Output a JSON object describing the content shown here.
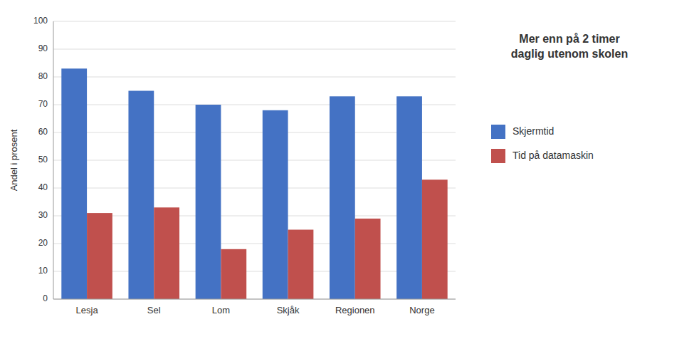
{
  "chart_data": {
    "type": "bar",
    "title": "Mer enn på 2 timer\ndaglig utenom skolen",
    "categories": [
      "Lesja",
      "Sel",
      "Lom",
      "Skjåk",
      "Regionen",
      "Norge"
    ],
    "series": [
      {
        "name": "Skjermtid",
        "color": "#4472C4",
        "values": [
          83,
          75,
          70,
          68,
          73,
          73
        ]
      },
      {
        "name": "Tid på datamaskin",
        "color": "#C0504D",
        "values": [
          31,
          33,
          18,
          25,
          29,
          43
        ]
      }
    ],
    "ylabel": "Andel i prosent",
    "ylim": [
      0,
      100
    ],
    "yticks": [
      0,
      10,
      20,
      30,
      40,
      50,
      60,
      70,
      80,
      90,
      100
    ],
    "grid": true,
    "legend": "right"
  }
}
